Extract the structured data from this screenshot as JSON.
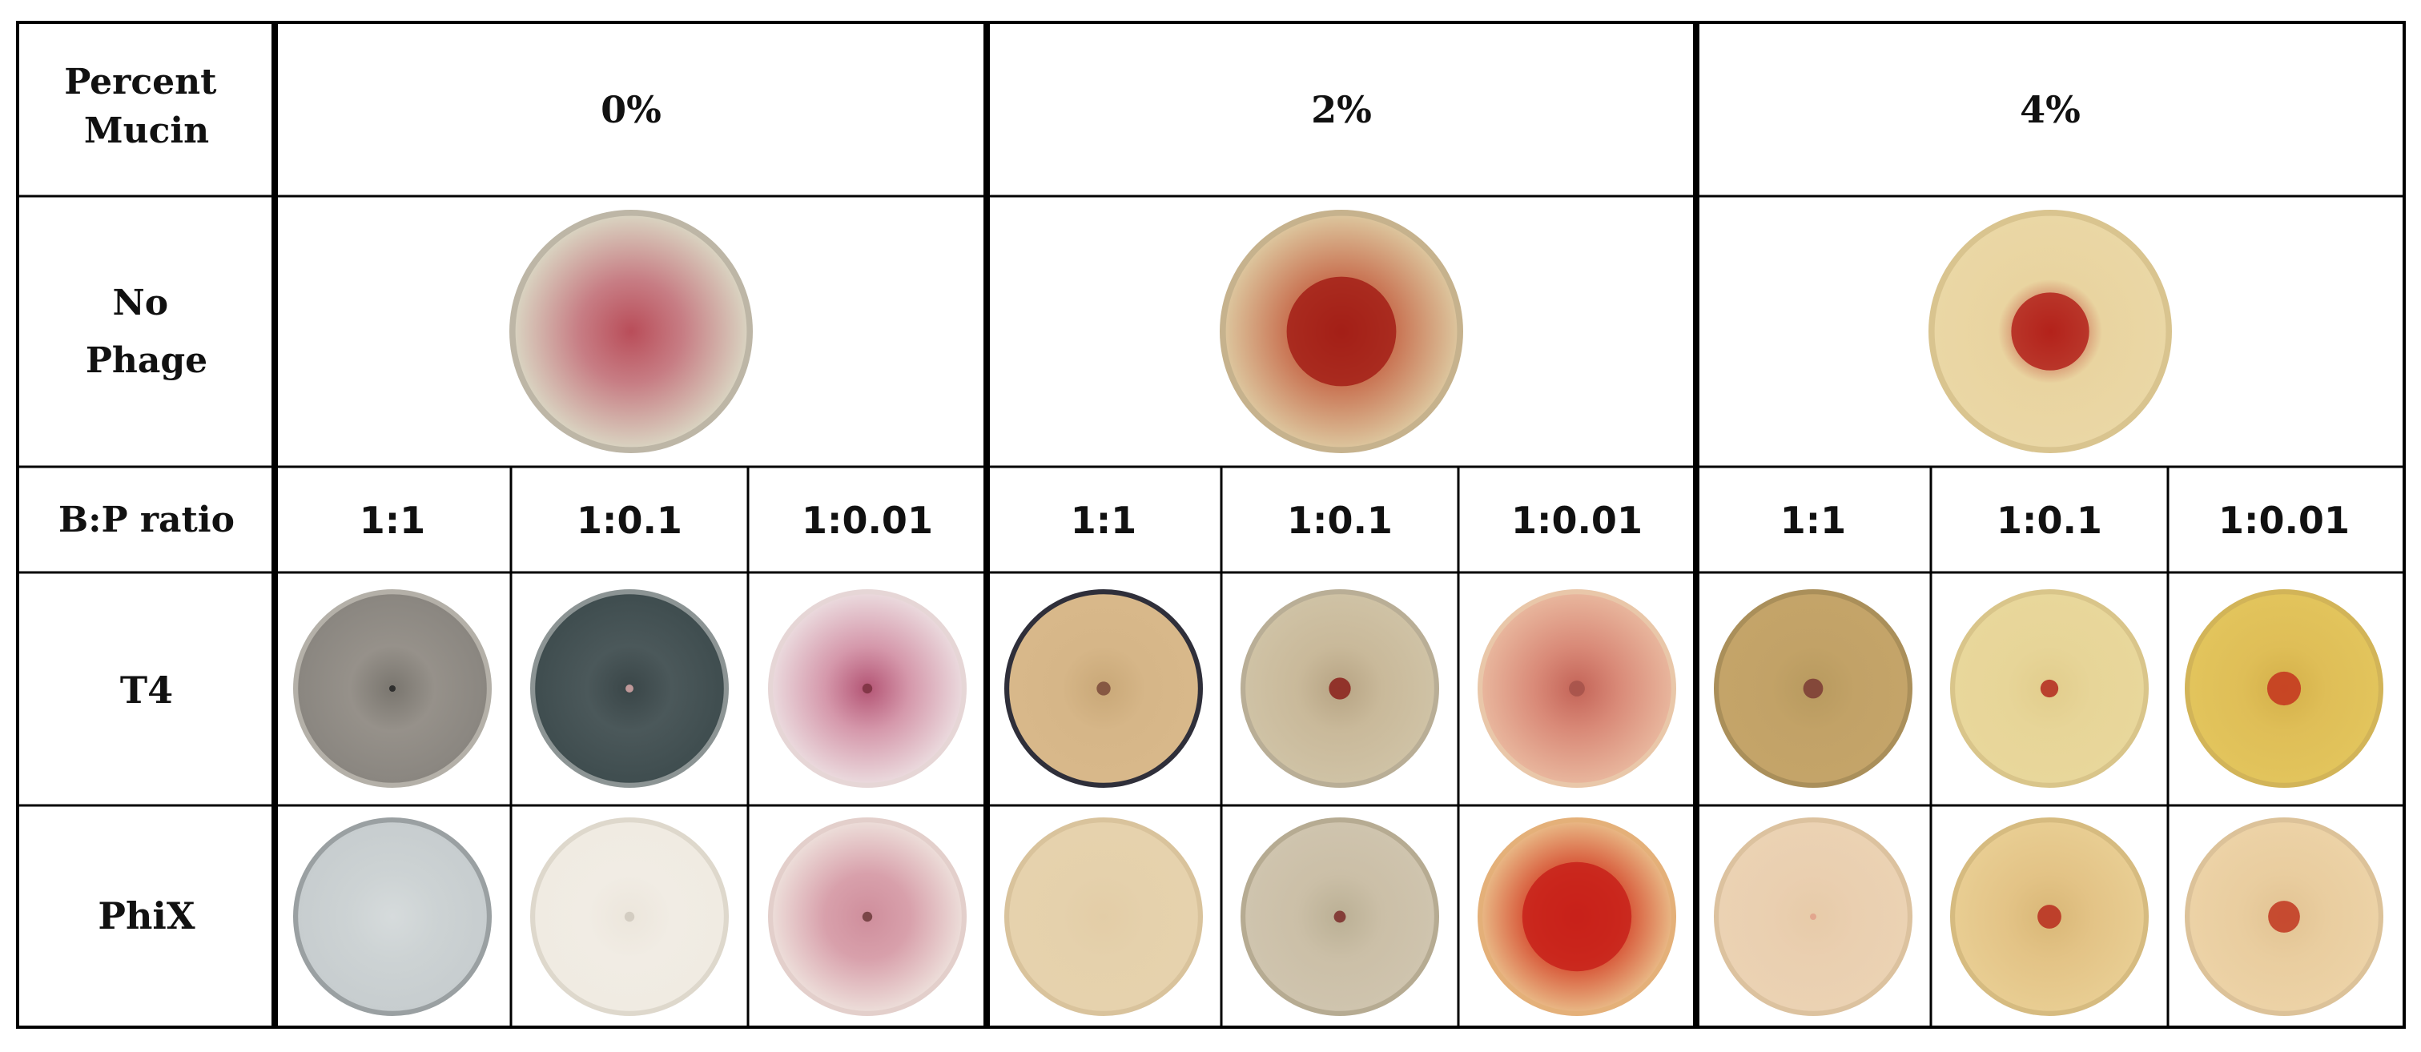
{
  "table": {
    "row_headers": {
      "mucin": [
        "Percent",
        "Mucin"
      ],
      "no_phage": [
        "No",
        "Phage"
      ],
      "bp_ratio": "B:P ratio",
      "t4": "T4",
      "phix": "PhiX"
    },
    "mucin_levels": [
      "0%",
      "2%",
      "4%"
    ],
    "ratios": [
      "1:1",
      "1:0.1",
      "1:0.01"
    ]
  },
  "plates": {
    "no_phage": [
      {
        "mucin": "0%",
        "base": "#d9d2c0",
        "mid": "#c77d84",
        "center": "#b94d59",
        "spot": 0.0,
        "spot_color": "#a02a33",
        "rim": "#bdb6a6"
      },
      {
        "mucin": "2%",
        "base": "#dcc49c",
        "mid": "#c87050",
        "center": "#a6221a",
        "spot": 0.45,
        "spot_color": "#a31f16",
        "rim": "#c6b28d"
      },
      {
        "mucin": "4%",
        "base": "#ead7a5",
        "mid": "#e9d4a0",
        "center": "#b5211a",
        "spot": 0.32,
        "spot_color": "#b3221b",
        "rim": "#d9c48f"
      }
    ],
    "t4": [
      {
        "mucin": "0%",
        "ratio": "1:1",
        "base": "#8a8680",
        "mid": "#96918a",
        "center": "#7a766f",
        "spot": 0.03,
        "spot_color": "#222222",
        "rim": "#b4b0a8"
      },
      {
        "mucin": "0%",
        "ratio": "1:0.1",
        "base": "#3f4d4f",
        "mid": "#4b585a",
        "center": "#3a4648",
        "spot": 0.04,
        "spot_color": "#d8a8a8",
        "rim": "#8c9494"
      },
      {
        "mucin": "0%",
        "ratio": "1:0.01",
        "base": "#ead8dc",
        "mid": "#d598ab",
        "center": "#b45575",
        "spot": 0.05,
        "spot_color": "#7a3040",
        "rim": "#e6d6d6"
      },
      {
        "mucin": "2%",
        "ratio": "1:1",
        "base": "#d8b88a",
        "mid": "#d6b688",
        "center": "#c9a878",
        "spot": 0.07,
        "spot_color": "#7a4a3a",
        "rim": "#2f2f3a"
      },
      {
        "mucin": "2%",
        "ratio": "1:0.1",
        "base": "#cfc2a5",
        "mid": "#c9b99a",
        "center": "#b7a484",
        "spot": 0.11,
        "spot_color": "#8a1f1a",
        "rim": "#b9ae96"
      },
      {
        "mucin": "2%",
        "ratio": "1:0.01",
        "base": "#e8b59c",
        "mid": "#d98a78",
        "center": "#c46458",
        "spot": 0.08,
        "spot_color": "#a5524a",
        "rim": "#e9c7a9"
      },
      {
        "mucin": "4%",
        "ratio": "1:1",
        "base": "#c4a469",
        "mid": "#c2a267",
        "center": "#b89a5f",
        "spot": 0.1,
        "spot_color": "#7a3a34",
        "rim": "#aa8f5a"
      },
      {
        "mucin": "4%",
        "ratio": "1:0.1",
        "base": "#e8d79b",
        "mid": "#e7d598",
        "center": "#e2cd8d",
        "spot": 0.09,
        "spot_color": "#b3271d",
        "rim": "#d9c58a"
      },
      {
        "mucin": "4%",
        "ratio": "1:0.01",
        "base": "#e2c45c",
        "mid": "#dfbe57",
        "center": "#d4b04a",
        "spot": 0.17,
        "spot_color": "#c4321d",
        "rim": "#d2b458"
      }
    ],
    "phix": [
      {
        "mucin": "0%",
        "ratio": "1:1",
        "base": "#c7cdcf",
        "mid": "#cdd3d4",
        "center": "#d6dbdc",
        "spot": 0.0,
        "spot_color": "#c8c2c2",
        "rim": "#9aa0a2"
      },
      {
        "mucin": "0%",
        "ratio": "1:0.1",
        "base": "#f0ebe2",
        "mid": "#f1ece4",
        "center": "#ece6dc",
        "spot": 0.05,
        "spot_color": "#cfc8bd",
        "rim": "#ded8cc"
      },
      {
        "mucin": "0%",
        "ratio": "1:0.01",
        "base": "#ecdcd8",
        "mid": "#d8a0ab",
        "center": "#cf8e9c",
        "spot": 0.05,
        "spot_color": "#6b3a3a",
        "rim": "#e3cfcb"
      },
      {
        "mucin": "2%",
        "ratio": "1:1",
        "base": "#e6d2ad",
        "mid": "#e5d1ac",
        "center": "#e3cda7",
        "spot": 0.0,
        "spot_color": "#c9a585",
        "rim": "#d9c39c"
      },
      {
        "mucin": "2%",
        "ratio": "1:0.1",
        "base": "#cfc4ae",
        "mid": "#cbbfa7",
        "center": "#bbb095",
        "spot": 0.06,
        "spot_color": "#7a2a28",
        "rim": "#b6ab92"
      },
      {
        "mucin": "2%",
        "ratio": "1:0.01",
        "base": "#e8b583",
        "mid": "#d4452a",
        "center": "#c8211a",
        "spot": 0.55,
        "spot_color": "#c8211a",
        "rim": "#e4b079"
      },
      {
        "mucin": "4%",
        "ratio": "1:1",
        "base": "#ebd2b3",
        "mid": "#eacfb0",
        "center": "#e7cba9",
        "spot": 0.03,
        "spot_color": "#e0a08a",
        "rim": "#dcc29f"
      },
      {
        "mucin": "4%",
        "ratio": "1:0.1",
        "base": "#e8cd92",
        "mid": "#e3c386",
        "center": "#d9b777",
        "spot": 0.12,
        "spot_color": "#b72a1d",
        "rim": "#d6bb80"
      },
      {
        "mucin": "4%",
        "ratio": "1:0.01",
        "base": "#ecd2a6",
        "mid": "#e9cd9f",
        "center": "#e2c393",
        "spot": 0.16,
        "spot_color": "#c1351e",
        "rim": "#dcc299"
      }
    ]
  }
}
